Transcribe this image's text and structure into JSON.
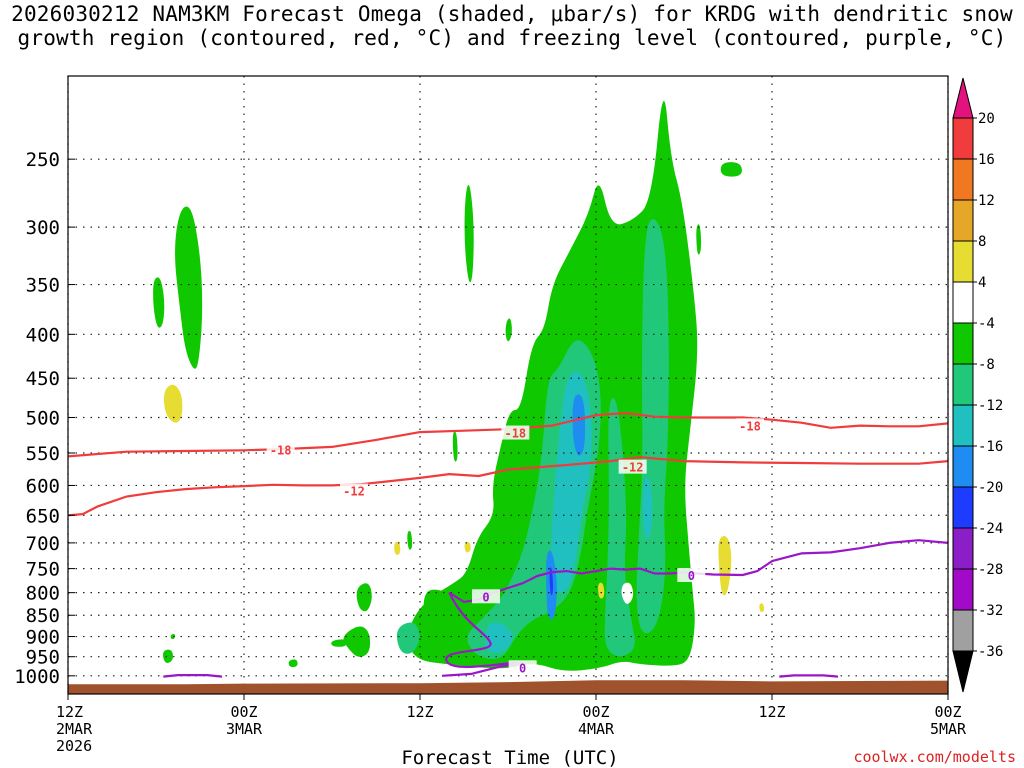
{
  "title": {
    "line1": "2026030212 NAM3KM Forecast Omega (shaded, μbar/s) for KRDG with dendritic snow",
    "line2": "growth region (contoured, red, °C) and freezing level (contoured, purple, °C)"
  },
  "credit": "coolwx.com/modelts",
  "colors": {
    "dendritic_contour": "#f03c3c",
    "freezing_contour": "#9a16c8",
    "terrain": "#a0522d",
    "omega_palette": {
      "gt_20": "#e2137e",
      "16_20": "#f03c3c",
      "12_16": "#f07820",
      "8_12": "#e6a628",
      "4_8": "#e6dc32",
      "-4_4": "#ffffff",
      "-8_-4": "#10c800",
      "-12_-8": "#22c87a",
      "-16_-12": "#20c0c0",
      "-20_-16": "#1e8cf0",
      "-24_-20": "#1e3cff",
      "-28_-24": "#8c1ec8",
      "-32_-28": "#a00ac8",
      "-36_-32": "#a0a0a0",
      "lt_-36": "#000000"
    }
  },
  "chart_data": {
    "type": "heatmap",
    "description_of_axes": {
      "xlabel": "Forecast Time (UTC)",
      "ylabel": "",
      "y_scale": "log-pressure (hPa), inverted"
    },
    "x_ticks": [
      {
        "hours": 0,
        "label1": "12Z",
        "label2": "2MAR",
        "label3": "2026"
      },
      {
        "hours": 12,
        "label1": "00Z",
        "label2": "3MAR",
        "label3": ""
      },
      {
        "hours": 24,
        "label1": "12Z",
        "label2": "",
        "label3": ""
      },
      {
        "hours": 36,
        "label1": "00Z",
        "label2": "4MAR",
        "label3": ""
      },
      {
        "hours": 48,
        "label1": "12Z",
        "label2": "",
        "label3": ""
      },
      {
        "hours": 60,
        "label1": "00Z",
        "label2": "5MAR",
        "label3": ""
      }
    ],
    "xlim_hours": [
      0,
      60
    ],
    "y_ticks": [
      250,
      300,
      350,
      400,
      450,
      500,
      550,
      600,
      650,
      700,
      750,
      800,
      850,
      900,
      950,
      1000
    ],
    "colorbar": {
      "labels": [
        "20",
        "16",
        "12",
        "8",
        "4",
        "-4",
        "-8",
        "-12",
        "-16",
        "-20",
        "-24",
        "-28",
        "-32",
        "-36"
      ],
      "unit": "μbar/s"
    },
    "contour_labels": [
      {
        "text": "-18",
        "hours": 14.5,
        "p": 546
      },
      {
        "text": "-18",
        "hours": 30.5,
        "p": 522
      },
      {
        "text": "-18",
        "hours": 46.5,
        "p": 512
      },
      {
        "text": "-12",
        "hours": 19.5,
        "p": 610
      },
      {
        "text": "-12",
        "hours": 38.5,
        "p": 572
      },
      {
        "text": "0",
        "hours": 28.5,
        "p": 810
      },
      {
        "text": "0",
        "hours": 31.0,
        "p": 980
      },
      {
        "text": "0",
        "hours": 42.5,
        "p": 765
      }
    ],
    "series": [
      {
        "name": "-18",
        "x": [
          0,
          4,
          8,
          12,
          15,
          18,
          21,
          24,
          27,
          30,
          33,
          36,
          38,
          40,
          42,
          44,
          46,
          48,
          50,
          52,
          54,
          56,
          58,
          60
        ],
        "y": [
          555,
          548,
          547,
          546,
          544,
          541,
          531,
          520,
          518,
          516,
          511,
          497,
          494,
          499,
          500,
          500,
          500,
          503,
          507,
          514,
          511,
          512,
          512,
          508
        ]
      },
      {
        "name": "-12",
        "x": [
          0,
          1,
          2,
          4,
          6,
          8,
          10,
          12,
          14,
          16,
          18,
          20,
          24,
          26,
          28,
          30,
          34,
          37,
          39,
          42,
          46,
          50,
          54,
          58,
          60
        ],
        "y": [
          650,
          648,
          635,
          618,
          611,
          606,
          603,
          601,
          599,
          600,
          600,
          598,
          588,
          582,
          585,
          575,
          568,
          562,
          556,
          562,
          564,
          565,
          566,
          566,
          562
        ]
      },
      {
        "name": "0",
        "x": [
          26,
          27,
          28,
          29,
          30,
          31,
          32,
          33,
          34,
          35,
          36,
          37,
          38,
          39,
          40,
          41,
          42,
          44,
          46,
          47,
          48,
          50,
          52,
          54,
          56,
          58,
          60
        ],
        "y": [
          800,
          820,
          815,
          800,
          790,
          780,
          765,
          757,
          755,
          760,
          755,
          750,
          752,
          750,
          760,
          760,
          758,
          762,
          763,
          755,
          735,
          720,
          718,
          710,
          700,
          695,
          700
        ]
      },
      {
        "name": "0",
        "x": [
          25.5,
          27.5,
          28.5,
          29.5,
          30.5,
          31.0
        ],
        "y": [
          1000,
          995,
          985,
          975,
          970,
          965
        ]
      },
      {
        "name": "0",
        "x": [
          6.5,
          7.5,
          8.5,
          9.5,
          10.5
        ],
        "y": [
          1002,
          998,
          998,
          998,
          1002
        ]
      },
      {
        "name": "0",
        "x": [
          48.5,
          49.5,
          50.5,
          51.5,
          52.5
        ],
        "y": [
          1002,
          999,
          999,
          999,
          1002
        ]
      }
    ]
  }
}
